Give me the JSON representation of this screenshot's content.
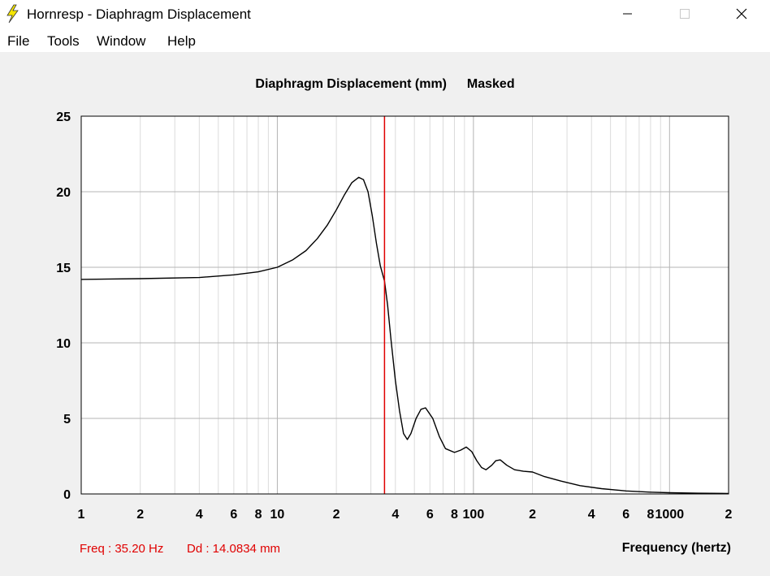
{
  "window": {
    "title": "Hornresp - Diaphragm Displacement",
    "icon": "lightning-bolt-icon"
  },
  "menu": [
    "File",
    "Tools",
    "Window",
    "Help"
  ],
  "plot": {
    "title": "Diaphragm Displacement (mm)",
    "mode": "Masked",
    "marker_color": "#e00000",
    "curve_color": "#000000"
  },
  "readout": {
    "freq": "Freq : 35.20 Hz",
    "dd": "Dd : 14.0834 mm"
  },
  "chart_data": {
    "type": "line",
    "title": "Diaphragm Displacement (mm)   Masked",
    "xlabel": "Frequency (hertz)",
    "ylabel": "",
    "x_scale": "log",
    "xlim": [
      1,
      2000
    ],
    "ylim": [
      0,
      25
    ],
    "grid": true,
    "y_ticks": [
      "0",
      "5",
      "10",
      "15",
      "20",
      "25"
    ],
    "x_ticks": [
      {
        "value": 1,
        "label": "1"
      },
      {
        "value": 2,
        "label": "2"
      },
      {
        "value": 4,
        "label": "4"
      },
      {
        "value": 6,
        "label": "6"
      },
      {
        "value": 8,
        "label": "8"
      },
      {
        "value": 10,
        "label": "10"
      },
      {
        "value": 20,
        "label": "2"
      },
      {
        "value": 40,
        "label": "4"
      },
      {
        "value": 60,
        "label": "6"
      },
      {
        "value": 80,
        "label": "8"
      },
      {
        "value": 100,
        "label": "100"
      },
      {
        "value": 200,
        "label": "2"
      },
      {
        "value": 400,
        "label": "4"
      },
      {
        "value": 600,
        "label": "6"
      },
      {
        "value": 800,
        "label": "8"
      },
      {
        "value": 1000,
        "label": "1000"
      },
      {
        "value": 2000,
        "label": "2"
      }
    ],
    "marker_x": 35.2,
    "series": [
      {
        "x": [
          1,
          2,
          4,
          6,
          8,
          10,
          12,
          14,
          16,
          18,
          20,
          22,
          24,
          26,
          27.5,
          29,
          30.5,
          32,
          33.5,
          35.2,
          36.5,
          38,
          40,
          42,
          44,
          46,
          48,
          51,
          54,
          57,
          62,
          67,
          72,
          80,
          86,
          92,
          98,
          104,
          110,
          116,
          124,
          130,
          137,
          148,
          162,
          180,
          200,
          230,
          280,
          350,
          450,
          600,
          800,
          1000,
          1400,
          2000
        ],
        "y": [
          14.2,
          14.25,
          14.32,
          14.5,
          14.7,
          15.0,
          15.5,
          16.1,
          16.9,
          17.8,
          18.8,
          19.8,
          20.6,
          20.95,
          20.8,
          20.0,
          18.4,
          16.6,
          15.1,
          14.08,
          12.5,
          10.2,
          7.5,
          5.5,
          4.0,
          3.6,
          4.0,
          5.0,
          5.6,
          5.7,
          5.0,
          3.8,
          3.0,
          2.75,
          2.9,
          3.1,
          2.8,
          2.2,
          1.75,
          1.6,
          1.9,
          2.2,
          2.25,
          1.9,
          1.6,
          1.5,
          1.45,
          1.15,
          0.85,
          0.55,
          0.35,
          0.2,
          0.12,
          0.08,
          0.05,
          0.03
        ]
      }
    ]
  }
}
